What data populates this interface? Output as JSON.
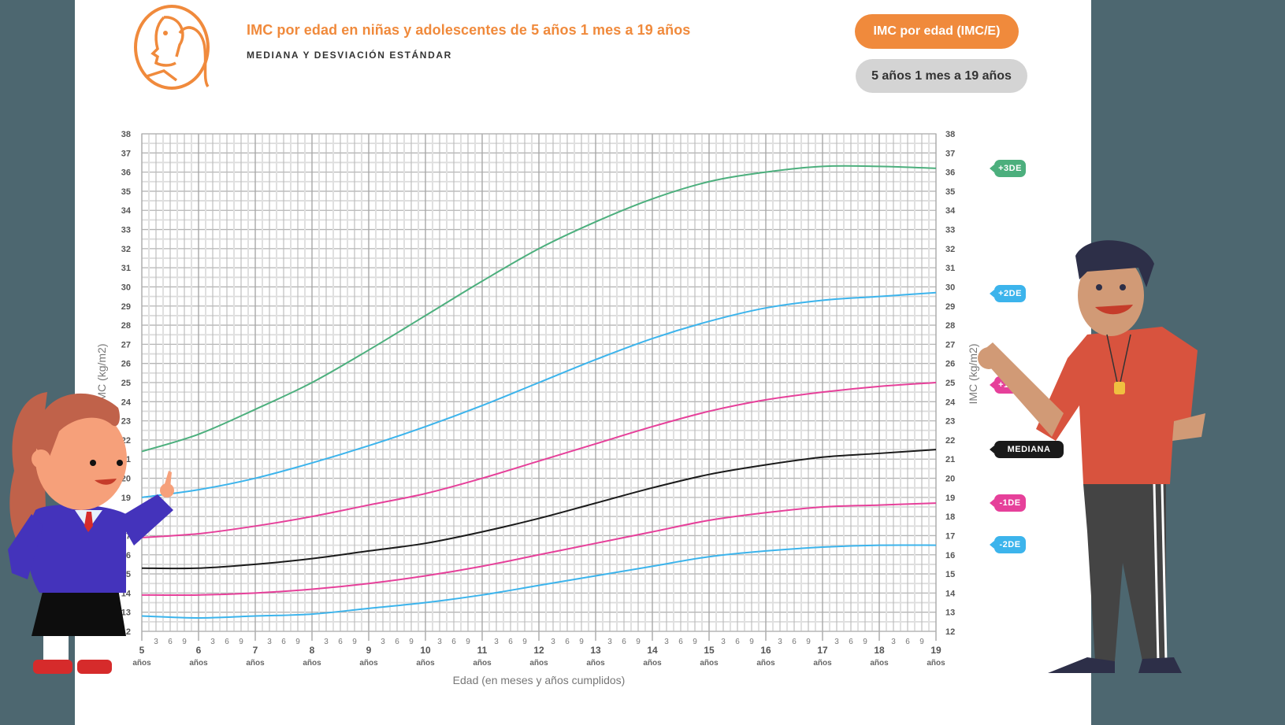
{
  "header": {
    "title": "IMC por edad en niñas y adolescentes de 5 años 1 mes a 19 años",
    "subtitle": "MEDIANA Y DESVIACIÓN ESTÁNDAR",
    "pill_indicator": "IMC por edad (IMC/E)",
    "pill_age_range": "5 años 1 mes a 19 años",
    "icon": "girl-profile-icon"
  },
  "colors": {
    "accent": "#f08a3c",
    "plus3": "#4caf7d",
    "plus2": "#3cb4ec",
    "plus1": "#e6409a",
    "median": "#1a1a1a",
    "minus1": "#e6409a",
    "minus2": "#3cb4ec",
    "background": "#4d6770"
  },
  "tags": [
    {
      "label": "+3DE",
      "color": "#4caf7d"
    },
    {
      "label": "+2DE",
      "color": "#3cb4ec"
    },
    {
      "label": "+1DE",
      "color": "#e6409a"
    },
    {
      "label": "MEDIANA",
      "color": "#1a1a1a"
    },
    {
      "label": "-1DE",
      "color": "#e6409a"
    },
    {
      "label": "-2DE",
      "color": "#3cb4ec"
    }
  ],
  "chart_data": {
    "type": "line",
    "title": "IMC por edad en niñas y adolescentes de 5 años 1 mes a 19 años",
    "subtitle": "MEDIANA Y DESVIACIÓN ESTÁNDAR",
    "xlabel": "Edad (en meses y años cumplidos)",
    "ylabel": "IMC (kg/m2)",
    "xlim": [
      5,
      19
    ],
    "ylim": [
      12,
      38
    ],
    "x_major_ticks": [
      "5",
      "6",
      "7",
      "8",
      "9",
      "10",
      "11",
      "12",
      "13",
      "14",
      "15",
      "16",
      "17",
      "18",
      "19"
    ],
    "x_major_unit": "años",
    "x_minor_ticks": [
      "3",
      "6",
      "9"
    ],
    "y_ticks": [
      12,
      13,
      14,
      15,
      16,
      17,
      18,
      19,
      20,
      21,
      22,
      23,
      24,
      25,
      26,
      27,
      28,
      29,
      30,
      31,
      32,
      33,
      34,
      35,
      36,
      37,
      38
    ],
    "grid": true,
    "legend_position": "right (tags)",
    "x": [
      5,
      6,
      7,
      8,
      9,
      10,
      11,
      12,
      13,
      14,
      15,
      16,
      17,
      18,
      19
    ],
    "series": [
      {
        "name": "+3DE",
        "color": "#4caf7d",
        "values": [
          21.4,
          22.3,
          23.6,
          25.0,
          26.7,
          28.5,
          30.3,
          32.0,
          33.4,
          34.6,
          35.5,
          36.0,
          36.3,
          36.3,
          36.2
        ]
      },
      {
        "name": "+2DE",
        "color": "#3cb4ec",
        "values": [
          19.0,
          19.4,
          20.0,
          20.8,
          21.7,
          22.7,
          23.8,
          25.0,
          26.2,
          27.3,
          28.2,
          28.9,
          29.3,
          29.5,
          29.7
        ]
      },
      {
        "name": "+1DE",
        "color": "#e6409a",
        "values": [
          16.9,
          17.1,
          17.5,
          18.0,
          18.6,
          19.2,
          20.0,
          20.9,
          21.8,
          22.7,
          23.5,
          24.1,
          24.5,
          24.8,
          25.0
        ]
      },
      {
        "name": "MEDIANA",
        "color": "#1a1a1a",
        "values": [
          15.3,
          15.3,
          15.5,
          15.8,
          16.2,
          16.6,
          17.2,
          17.9,
          18.7,
          19.5,
          20.2,
          20.7,
          21.1,
          21.3,
          21.5
        ]
      },
      {
        "name": "-1DE",
        "color": "#e6409a",
        "values": [
          13.9,
          13.9,
          14.0,
          14.2,
          14.5,
          14.9,
          15.4,
          16.0,
          16.6,
          17.2,
          17.8,
          18.2,
          18.5,
          18.6,
          18.7
        ]
      },
      {
        "name": "-2DE",
        "color": "#3cb4ec",
        "values": [
          12.8,
          12.7,
          12.8,
          12.9,
          13.2,
          13.5,
          13.9,
          14.4,
          14.9,
          15.4,
          15.9,
          16.2,
          16.4,
          16.5,
          16.5
        ]
      }
    ]
  }
}
